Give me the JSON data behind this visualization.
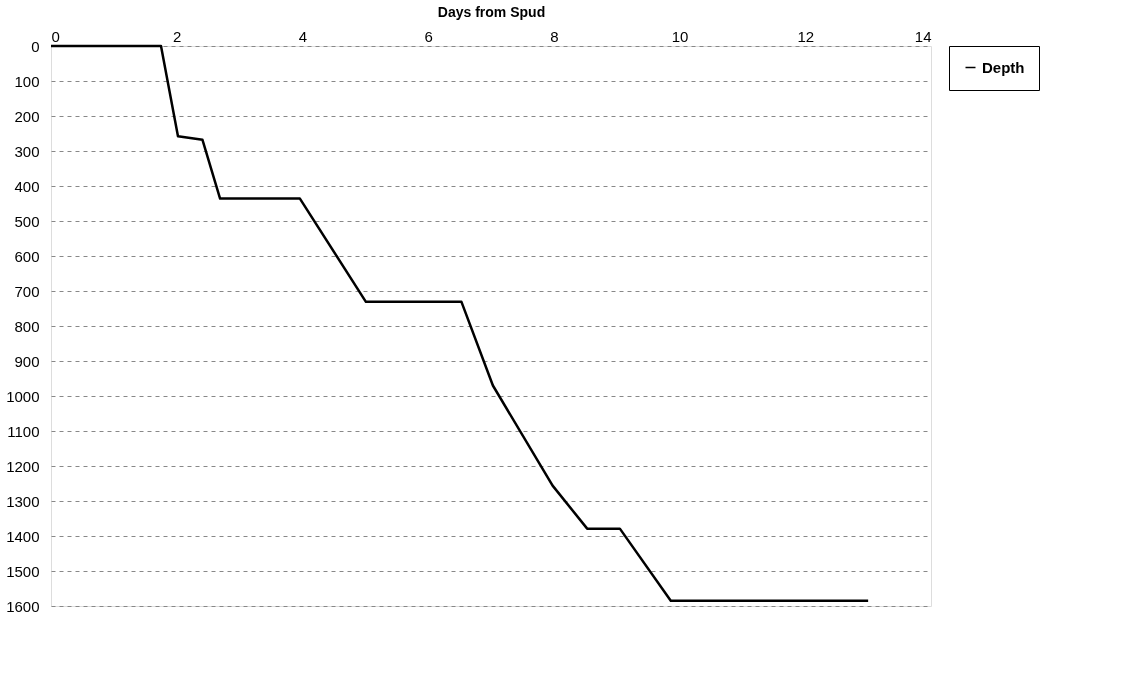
{
  "chart_data": {
    "type": "line",
    "xlabel": "Days from Spud",
    "series": [
      {
        "name": "Depth",
        "color": "#000000",
        "x": [
          0,
          1.75,
          2.02,
          2.41,
          2.69,
          3.96,
          5.01,
          6.53,
          7.03,
          7.98,
          8.53,
          9.05,
          9.86,
          13.0
        ],
        "values": [
          0,
          0,
          258,
          268,
          436,
          436,
          731,
          731,
          970,
          1256,
          1379,
          1379,
          1585,
          1585
        ]
      }
    ],
    "xlim": [
      0,
      14
    ],
    "xticks": [
      0,
      2,
      4,
      6,
      8,
      10,
      12,
      14
    ],
    "ylim": [
      1600,
      0
    ],
    "yticks": [
      0,
      100,
      200,
      300,
      400,
      500,
      600,
      700,
      800,
      900,
      1000,
      1100,
      1200,
      1300,
      1400,
      1500,
      1600
    ],
    "grid": "y",
    "legend": "right",
    "marker": "none",
    "line_style": "solid"
  }
}
